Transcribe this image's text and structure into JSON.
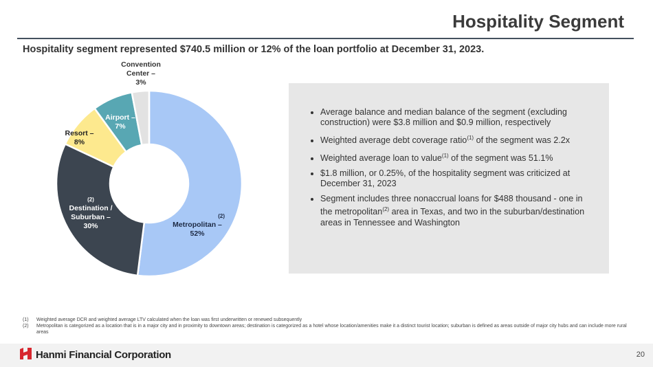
{
  "header": {
    "title": "Hospitality Segment",
    "subtitle": "Hospitality segment represented $740.5 million or 12% of the loan portfolio at December 31, 2023."
  },
  "chart_data": {
    "type": "pie",
    "donut": true,
    "categories": [
      "Metropolitan –",
      "Destination / Suburban –",
      "Resort –",
      "Airport –",
      "Convention Center –"
    ],
    "values": [
      52,
      30,
      8,
      7,
      3
    ],
    "value_labels": [
      "52%",
      "30%",
      "8%",
      "7%",
      "3%"
    ],
    "note_marks": [
      "(2)",
      "(2)",
      null,
      null,
      null
    ],
    "colors": [
      "#a8c8f6",
      "#3c4550",
      "#fde98e",
      "#58a7b3",
      "#e2e2e2"
    ]
  },
  "bullets": [
    [
      "Average balance and median balance of the segment (excluding construction) were $3.8 million and $0.9 million, respectively"
    ],
    [
      "Weighted average debt coverage ratio",
      {
        "sup": "(1)"
      },
      " of the segment was 2.2x"
    ],
    [
      "Weighted average loan to value",
      {
        "sup": "(1)"
      },
      " of the segment was 51.1%"
    ],
    [
      "$1.8 million, or 0.25%, of the hospitality segment was criticized at December 31, 2023"
    ],
    [
      "Segment includes three nonaccrual loans for $488 thousand - one in the metropolitan",
      {
        "sup": "(2)"
      },
      " area in Texas, and two in the suburban/destination areas in Tennessee and Washington"
    ]
  ],
  "footnotes": [
    {
      "mark": "(1)",
      "text": "Weighted average DCR and weighted average LTV calculated when the loan was first underwritten or renewed subsequently"
    },
    {
      "mark": "(2)",
      "text": "Metropolitan is categorized as a location that is in a major city and in proximity to downtown areas; destination is categorized as a hotel whose location/amenities make it a distinct tourist location; suburban is defined as areas outside of major city hubs and can include more rural areas"
    }
  ],
  "footer": {
    "company": "Hanmi Financial Corporation",
    "page": "20"
  }
}
